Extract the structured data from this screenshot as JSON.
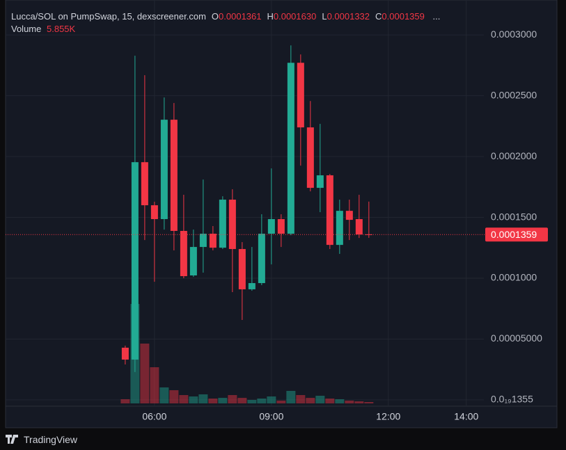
{
  "chart_data": {
    "type": "candlestick",
    "title": "Lucca/SOL on PumpSwap, 15, dexscreener.com",
    "legend": {
      "items": [
        {
          "key": "O",
          "value": "0.0001361"
        },
        {
          "key": "H",
          "value": "0.0001630"
        },
        {
          "key": "L",
          "value": "0.0001332"
        },
        {
          "key": "C",
          "value": "0.0001359"
        }
      ],
      "more": "...",
      "volume_label": "Volume",
      "volume_value": "5.855K"
    },
    "x": [
      5.25,
      5.5,
      5.75,
      6,
      6.25,
      6.5,
      6.75,
      7,
      7.25,
      7.5,
      7.75,
      8,
      8.25,
      8.5,
      8.75,
      9,
      9.25,
      9.5,
      9.75,
      10,
      10.25,
      10.5,
      10.75,
      11,
      11.25,
      11.5
    ],
    "open": [
      4.29e-05,
      3.31e-05,
      0.0001954,
      0.00016,
      0.0001486,
      0.0002303,
      0.0001389,
      0.0001023,
      0.0001257,
      0.0001366,
      0.0001251,
      0.0001646,
      0.000124,
      9.09e-05,
      9.6e-05,
      0.0001366,
      0.0001486,
      0.0001366,
      0.0002771,
      0.000224,
      0.0001743,
      0.0001846,
      0.0001274,
      0.0001554,
      0.0001486,
      0.0001361
    ],
    "high": [
      4.46e-05,
      0.0002829,
      0.0002669,
      0.0001629,
      0.0002486,
      0.000244,
      0.0001686,
      0.00014,
      0.0001811,
      0.0001429,
      0.0001674,
      0.0001731,
      0.0001297,
      0.0001257,
      0.0001526,
      0.0001903,
      0.0001526,
      0.0002914,
      0.000284,
      0.0002457,
      0.0002269,
      0.0001857,
      0.0001646,
      0.0001646,
      0.0001686,
      0.000163
    ],
    "low": [
      2.91e-05,
      2.29e-05,
      0.0001314,
      9.71e-05,
      0.00014,
      0.0001229,
      0.0001,
      0.0001011,
      0.0001046,
      0.0001229,
      0.000124,
      8.86e-05,
      6.57e-05,
      8.97e-05,
      9.43e-05,
      0.0001114,
      0.0001257,
      0.0001354,
      0.0001926,
      0.0001714,
      0.0001543,
      0.000124,
      0.00012,
      0.0001314,
      0.0001331,
      0.0001332
    ],
    "close": [
      3.31e-05,
      0.0001954,
      0.00016,
      0.0001486,
      0.0002303,
      0.0001389,
      0.0001017,
      0.0001257,
      0.0001366,
      0.0001251,
      0.0001646,
      0.000124,
      9.09e-05,
      9.6e-05,
      0.0001366,
      0.0001486,
      0.0001366,
      0.0002771,
      0.000224,
      0.0001743,
      0.0001846,
      0.0001274,
      0.0001554,
      0.000148,
      0.000136,
      0.0001359
    ],
    "volume": [
      17600,
      418700,
      251800,
      152300,
      67300,
      55600,
      35100,
      29300,
      38100,
      20500,
      23400,
      35100,
      23400,
      14600,
      20500,
      29300,
      11700,
      52700,
      35100,
      23400,
      32200,
      20500,
      17600,
      11700,
      8800,
      5855
    ],
    "up_color": "#22ab94",
    "down_color": "#f23645",
    "ylim": [
      -2.9e-06,
      0.000323
    ],
    "yticks": [
      {
        "value": 1.355e-23,
        "label": "0.0₁₉1355"
      },
      {
        "value": 5e-05,
        "label": "0.00005000"
      },
      {
        "value": 0.0001,
        "label": "0.0001000"
      },
      {
        "value": 0.00015,
        "label": "0.0001500"
      },
      {
        "value": 0.0002,
        "label": "0.0002000"
      },
      {
        "value": 0.00025,
        "label": "0.0002500"
      },
      {
        "value": 0.0003,
        "label": "0.0003000"
      }
    ],
    "xlim": [
      2.18,
      14.45
    ],
    "xticks": [
      {
        "value": 6,
        "label": "06:00"
      },
      {
        "value": 9,
        "label": "09:00"
      },
      {
        "value": 12,
        "label": "12:00"
      },
      {
        "value": 14,
        "label": "14:00"
      }
    ],
    "last_price": {
      "value": 0.0001359,
      "label": "0.0001359"
    },
    "grid": true,
    "branding": "TradingView"
  }
}
